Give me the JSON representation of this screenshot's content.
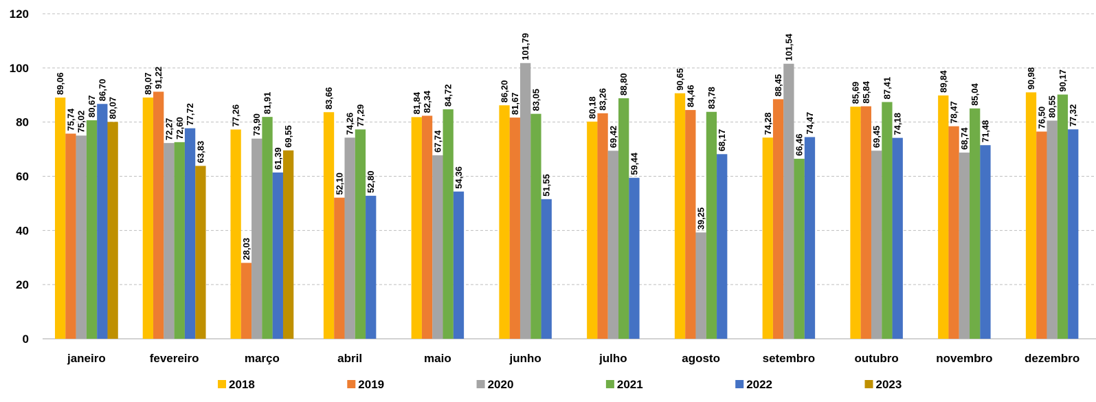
{
  "chart_data": {
    "type": "bar",
    "categories": [
      "janeiro",
      "fevereiro",
      "março",
      "abril",
      "maio",
      "junho",
      "julho",
      "agosto",
      "setembro",
      "outubro",
      "novembro",
      "dezembro"
    ],
    "series": [
      {
        "name": "2018",
        "color": "#FFC000",
        "values": [
          89.06,
          89.07,
          77.26,
          83.66,
          81.84,
          86.2,
          80.18,
          90.65,
          74.28,
          85.69,
          89.84,
          90.98
        ],
        "labels": [
          "89,06",
          "89,07",
          "77,26",
          "83,66",
          "81,84",
          "86,20",
          "80,18",
          "90,65",
          "74,28",
          "85,69",
          "89,84",
          "90,98"
        ]
      },
      {
        "name": "2019",
        "color": "#ED7D31",
        "values": [
          75.74,
          91.22,
          28.03,
          52.1,
          82.34,
          81.67,
          83.26,
          84.46,
          88.45,
          85.84,
          78.47,
          76.5
        ],
        "labels": [
          "75,74",
          "91,22",
          "28,03",
          "52,10",
          "82,34",
          "81,67",
          "83,26",
          "84,46",
          "88,45",
          "85,84",
          "78,47",
          "76,50"
        ]
      },
      {
        "name": "2020",
        "color": "#A5A5A5",
        "values": [
          75.02,
          72.27,
          73.9,
          74.26,
          67.74,
          101.79,
          69.42,
          39.25,
          101.54,
          69.45,
          68.74,
          80.55
        ],
        "labels": [
          "75,02",
          "72,27",
          "73,90",
          "74,26",
          "67,74",
          "101,79",
          "69,42",
          "39,25",
          "101,54",
          "69,45",
          "68,74",
          "80,55"
        ]
      },
      {
        "name": "2021",
        "color": "#70AD47",
        "values": [
          80.67,
          72.6,
          81.91,
          77.29,
          84.72,
          83.05,
          88.8,
          83.78,
          66.46,
          87.41,
          85.04,
          90.17
        ],
        "labels": [
          "80,67",
          "72,60",
          "81,91",
          "77,29",
          "84,72",
          "83,05",
          "88,80",
          "83,78",
          "66,46",
          "87,41",
          "85,04",
          "90,17"
        ]
      },
      {
        "name": "2022",
        "color": "#4472C4",
        "values": [
          86.7,
          77.72,
          61.39,
          52.8,
          54.36,
          51.55,
          59.44,
          68.17,
          74.47,
          74.18,
          71.48,
          77.32
        ],
        "labels": [
          "86,70",
          "77,72",
          "61,39",
          "52,80",
          "54,36",
          "51,55",
          "59,44",
          "68,17",
          "74,47",
          "74,18",
          "71,48",
          "77,32"
        ]
      },
      {
        "name": "2023",
        "color": "#BF9000",
        "values": [
          80.07,
          63.83,
          69.55,
          null,
          null,
          null,
          null,
          null,
          null,
          null,
          null,
          null
        ],
        "labels": [
          "80,07",
          "63,83",
          "69,55",
          null,
          null,
          null,
          null,
          null,
          null,
          null,
          null,
          null
        ]
      }
    ],
    "yticks": [
      "0",
      "20",
      "40",
      "60",
      "80",
      "100",
      "120"
    ],
    "ylim": [
      0,
      120
    ],
    "grid": true,
    "legend_position": "bottom",
    "xlabel": "",
    "ylabel": "",
    "title": ""
  }
}
